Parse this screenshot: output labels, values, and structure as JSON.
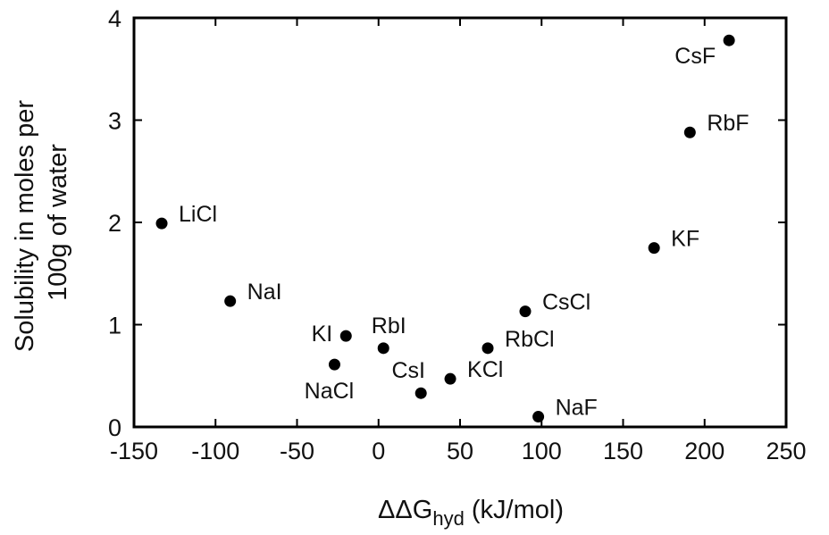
{
  "chart_data": {
    "type": "scatter",
    "title": "",
    "xlabel": {
      "main": "ΔΔG",
      "sub": "hyd",
      "unit": " (kJ/mol)"
    },
    "ylabel": [
      "Solubility in moles per",
      "100g of water"
    ],
    "xlim": [
      -150,
      250
    ],
    "ylim": [
      0,
      4
    ],
    "xticks": [
      "-150",
      "-100",
      "-50",
      "0",
      "50",
      "100",
      "150",
      "200",
      "250"
    ],
    "yticks": [
      "0",
      "1",
      "2",
      "3",
      "4"
    ],
    "grid": false,
    "legend": "none",
    "marker_color": "#000000",
    "points": [
      {
        "label": "CsF",
        "x": 215,
        "y": 3.78,
        "label_pos": "left"
      },
      {
        "label": "RbF",
        "x": 191,
        "y": 2.88,
        "label_pos": "right"
      },
      {
        "label": "KF",
        "x": 169,
        "y": 1.75,
        "label_pos": "right"
      },
      {
        "label": "LiCl",
        "x": -133,
        "y": 1.99,
        "label_pos": "right"
      },
      {
        "label": "NaI",
        "x": -91,
        "y": 1.23,
        "label_pos": "right"
      },
      {
        "label": "CsCl",
        "x": 90,
        "y": 1.13,
        "label_pos": "right"
      },
      {
        "label": "KI",
        "x": -20,
        "y": 0.89,
        "label_pos": "left"
      },
      {
        "label": "RbI",
        "x": 3,
        "y": 0.77,
        "label_pos": "above"
      },
      {
        "label": "RbCl",
        "x": 67,
        "y": 0.77,
        "label_pos": "right"
      },
      {
        "label": "NaCl",
        "x": -27,
        "y": 0.61,
        "label_pos": "below"
      },
      {
        "label": "CsI",
        "x": 26,
        "y": 0.33,
        "label_pos": "above"
      },
      {
        "label": "KCl",
        "x": 44,
        "y": 0.47,
        "label_pos": "right"
      },
      {
        "label": "NaF",
        "x": 98,
        "y": 0.1,
        "label_pos": "right"
      }
    ]
  }
}
